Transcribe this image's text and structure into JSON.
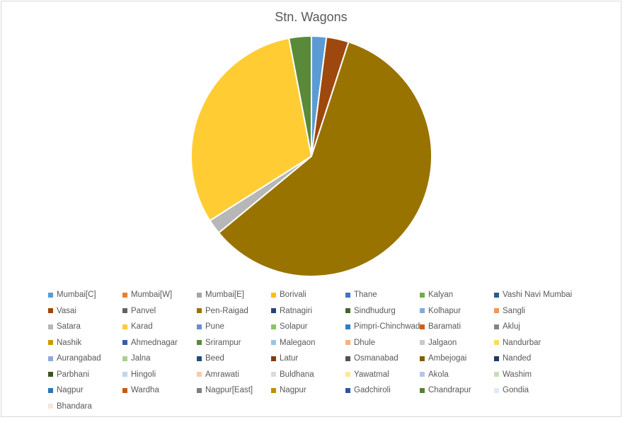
{
  "chart_data": {
    "type": "pie",
    "title": "Stn. Wagons",
    "legend_position": "bottom",
    "categories": [
      "Mumbai[C]",
      "Mumbai[W]",
      "Mumbai[E]",
      "Borivali",
      "Thane",
      "Kalyan",
      "Vashi Navi Mumbai",
      "Vasai",
      "Panvel",
      "Pen-Raigad",
      "Ratnagiri",
      "Sindhudurg",
      "Kolhapur",
      "Sangli",
      "Satara",
      "Karad",
      "Pune",
      "Solapur",
      "Pimpri-Chinchwad",
      "Baramati",
      "Akluj",
      "Nashik",
      "Ahmednagar",
      "Srirampur",
      "Malegaon",
      "Dhule",
      "Jalgaon",
      "Nandurbar",
      "Aurangabad",
      "Jalna",
      "Beed",
      "Latur",
      "Osmanabad",
      "Ambejogai",
      "Nanded",
      "Parbhani",
      "Hingoli",
      "Amrawati",
      "Buldhana",
      "Yawatmal",
      "Akola",
      "Washim",
      "Nagpur",
      "Wardha",
      "Nagpur[East]",
      "Nagpur",
      "Gadchiroli",
      "Chandrapur",
      "Gondia",
      "Bhandara"
    ],
    "values": [
      2,
      0,
      0,
      0,
      0,
      0,
      0,
      3,
      0,
      59,
      0,
      0,
      0,
      0,
      2,
      31,
      0,
      0,
      0,
      0,
      0,
      0,
      0,
      3,
      0,
      0,
      0,
      0,
      0,
      0,
      0,
      0,
      0,
      0,
      0,
      0,
      0,
      0,
      0,
      0,
      0,
      0,
      0,
      0,
      0,
      0,
      0,
      0,
      0,
      0
    ],
    "colors": [
      "#5b9bd5",
      "#ed7d31",
      "#a5a5a5",
      "#ffc000",
      "#4472c4",
      "#70ad47",
      "#255e91",
      "#9e480e",
      "#636363",
      "#997300",
      "#264478",
      "#43682b",
      "#7cafdd",
      "#f1975a",
      "#b7b7b7",
      "#ffcd33",
      "#698ed0",
      "#8cc168",
      "#327dc2",
      "#d26012",
      "#848484",
      "#cc9a00",
      "#3a5ca8",
      "#5a8a39",
      "#9dc3e6",
      "#f4b183",
      "#c9c9c9",
      "#ffd966",
      "#8faadc",
      "#a9d18e",
      "#1f4e79",
      "#843c0c",
      "#525252",
      "#7f6000",
      "#203864",
      "#375623",
      "#bdd7ee",
      "#f8cbad",
      "#dbdbdb",
      "#ffe699",
      "#b4c7e7",
      "#c5e0b4",
      "#2e75b6",
      "#c55a11",
      "#7f7f7f",
      "#bf9000",
      "#2f5597",
      "#548235",
      "#deebf7",
      "#fbe5d6"
    ]
  }
}
